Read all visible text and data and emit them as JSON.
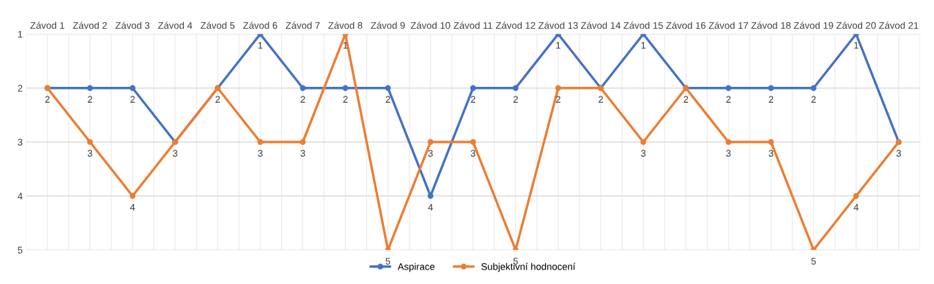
{
  "chart_data": {
    "type": "line",
    "categories": [
      "Závod 1",
      "Závod 2",
      "Závod 3",
      "Závod 4",
      "Závod 5",
      "Závod 6",
      "Závod 7",
      "Závod 8",
      "Závod 9",
      "Závod 10",
      "Závod 11",
      "Závod 12",
      "Závod 13",
      "Závod 14",
      "Závod 15",
      "Závod 16",
      "Závod 17",
      "Závod 18",
      "Závod 19",
      "Závod 20",
      "Závod 21"
    ],
    "series": [
      {
        "name": "Aspirace",
        "color": "#4472c4",
        "values": [
          2,
          2,
          2,
          3,
          2,
          1,
          2,
          2,
          2,
          4,
          2,
          2,
          1,
          2,
          1,
          2,
          2,
          2,
          2,
          1,
          3
        ],
        "value_labels": [
          "2",
          "2",
          "2",
          "3",
          "2",
          "1",
          "2",
          "2",
          "2",
          "4",
          "2",
          "2",
          "1",
          "2",
          "1",
          "2",
          "2",
          "2",
          "2",
          "1",
          "3"
        ]
      },
      {
        "name": "Subjektivní hodnocení",
        "color": "#ed7d31",
        "values": [
          2,
          3,
          4,
          3,
          2,
          3,
          3,
          1,
          5,
          3,
          3,
          5,
          2,
          2,
          3,
          2,
          3,
          3,
          5,
          4,
          3
        ],
        "value_labels": [
          null,
          "3",
          "4",
          null,
          null,
          "3",
          "3",
          "1",
          "5",
          "3",
          "3",
          "5",
          "2",
          null,
          "3",
          null,
          "3",
          "3",
          "5",
          "4",
          null
        ]
      }
    ],
    "ylim": [
      5,
      1
    ],
    "yticks": [
      1,
      2,
      3,
      4,
      5
    ],
    "grid": true,
    "legend": "bottom",
    "marker": "circle",
    "line_style": "solid"
  }
}
